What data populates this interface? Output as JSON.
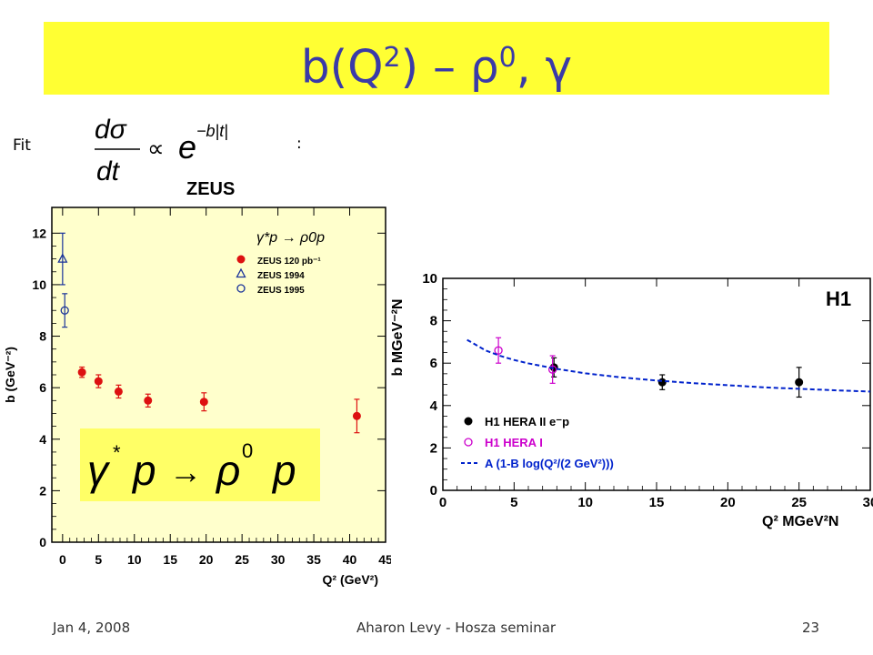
{
  "slide": {
    "title_base": "b(Q",
    "title_sup1": "2",
    "title_mid": ") – ρ",
    "title_sup2": "0",
    "title_end": ", γ",
    "fit_label": "Fit",
    "fit_colon": ":",
    "reaction_formula": "γ* p → ρ0 p"
  },
  "footer": {
    "date": "Jan 4, 2008",
    "author": "Aharon Levy - Hosza seminar",
    "page": "23"
  },
  "colors": {
    "title_bar": "#ffff33",
    "title_text": "#3a3aa8",
    "zeus_frame_bg": "#ffffcc",
    "zeus_red": "#dd1111",
    "zeus_blue": "#1a3399",
    "h1_black": "#000000",
    "h1_magenta": "#cc00cc",
    "h1_fit_blue": "#0022cc"
  },
  "chart_data": [
    {
      "type": "scatter",
      "experiment_label": "ZEUS",
      "process_label": "γ*p → ρ0p",
      "xlabel": "Q² (GeV²)",
      "ylabel": "b (GeV⁻²)",
      "xlim": [
        -1.5,
        45
      ],
      "ylim": [
        0,
        13
      ],
      "xticks": [
        "0",
        "5",
        "10",
        "15",
        "20",
        "25",
        "30",
        "35",
        "40",
        "45"
      ],
      "yticks": [
        "0",
        "2",
        "4",
        "6",
        "8",
        "10",
        "12"
      ],
      "grid": false,
      "legend_position": "top-right",
      "series": [
        {
          "name": "ZEUS 120 pb⁻¹",
          "marker": "filled-circle",
          "color": "#dd1111",
          "points": [
            {
              "x": 2.7,
              "y": 6.6,
              "err": 0.2
            },
            {
              "x": 5.0,
              "y": 6.25,
              "err": 0.25
            },
            {
              "x": 7.8,
              "y": 5.85,
              "err": 0.25
            },
            {
              "x": 11.9,
              "y": 5.5,
              "err": 0.25
            },
            {
              "x": 19.7,
              "y": 5.45,
              "err": 0.35
            },
            {
              "x": 41.0,
              "y": 4.9,
              "err": 0.65
            }
          ]
        },
        {
          "name": "ZEUS 1994",
          "marker": "open-triangle",
          "color": "#1a3399",
          "points": [
            {
              "x": 0.0,
              "y": 11.0,
              "err": 1.0
            }
          ]
        },
        {
          "name": "ZEUS 1995",
          "marker": "open-circle",
          "color": "#1a3399",
          "points": [
            {
              "x": 0.3,
              "y": 9.0,
              "err": 0.65
            }
          ]
        }
      ]
    },
    {
      "type": "scatter",
      "experiment_label": "H1",
      "xlabel": "Q² MGeV²N",
      "ylabel": "b MGeV⁻²N",
      "xlim": [
        0,
        30
      ],
      "ylim": [
        0,
        10
      ],
      "xticks": [
        "0",
        "5",
        "10",
        "15",
        "20",
        "25",
        "30"
      ],
      "yticks": [
        "0",
        "2",
        "4",
        "6",
        "8",
        "10"
      ],
      "grid": false,
      "legend_position": "bottom-left",
      "series": [
        {
          "name": "H1 HERA II e⁻p",
          "marker": "filled-circle",
          "color": "#000000",
          "points": [
            {
              "x": 7.8,
              "y": 5.8,
              "err": 0.45
            },
            {
              "x": 15.4,
              "y": 5.1,
              "err": 0.35
            },
            {
              "x": 25.0,
              "y": 5.1,
              "err": 0.7
            }
          ]
        },
        {
          "name": "H1 HERA I",
          "marker": "open-circle",
          "color": "#cc00cc",
          "points": [
            {
              "x": 3.9,
              "y": 6.6,
              "err": 0.6
            },
            {
              "x": 7.7,
              "y": 5.7,
              "err": 0.65
            }
          ]
        },
        {
          "name": "A (1-B log(Q²/(2 GeV²)))",
          "type": "dashed-line",
          "color": "#0022cc",
          "x": [
            1.7,
            3,
            4,
            5,
            6,
            8,
            10,
            12.5,
            15,
            17.5,
            20,
            22.5,
            25,
            27.5,
            30
          ],
          "y": [
            7.1,
            6.6,
            6.35,
            6.15,
            5.99,
            5.73,
            5.52,
            5.33,
            5.18,
            5.06,
            4.96,
            4.86,
            4.79,
            4.72,
            4.66
          ]
        }
      ]
    }
  ]
}
